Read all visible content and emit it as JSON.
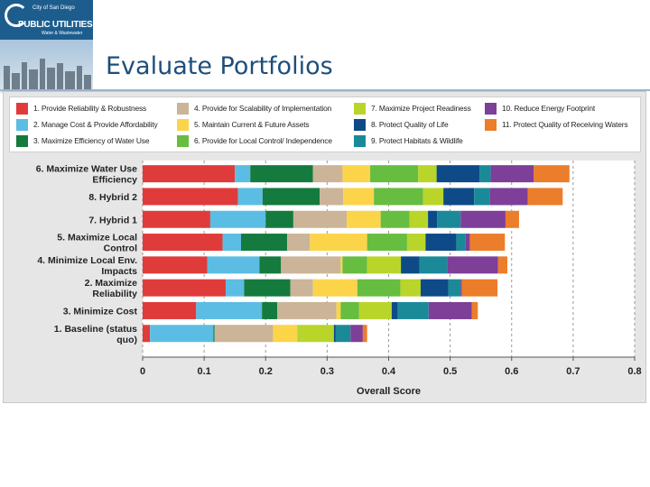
{
  "header": {
    "title": "Evaluate Portfolios",
    "logo": {
      "line1": "City of San Diego",
      "line2": "PUBLIC UTILITIES",
      "line3": "Water & Wastewater"
    }
  },
  "colors": {
    "frame_bg": "#e6e6e6",
    "plot_bg": "#ffffff",
    "title": "#1e4e7b"
  },
  "legend": [
    {
      "label": "1. Provide Reliability & Robustness",
      "color": "#e03b3b"
    },
    {
      "label": "2. Manage Cost & Provide Affordability",
      "color": "#5bbde3"
    },
    {
      "label": "3. Maximize Efficiency of Water Use",
      "color": "#157a3e"
    },
    {
      "label": "4. Provide for Scalability of Implementation",
      "color": "#cbb497"
    },
    {
      "label": "5. Maintain Current & Future Assets",
      "color": "#fcd44a"
    },
    {
      "label": "6. Provide for Local Control/ Independence",
      "color": "#66bd3f"
    },
    {
      "label": "7. Maximize Project Readiness",
      "color": "#b9d52a"
    },
    {
      "label": "8. Protect Quality of Life",
      "color": "#0e4a88"
    },
    {
      "label": "9. Protect Habitats & Wildlife",
      "color": "#1a8a98"
    },
    {
      "label": "10. Reduce Energy Footprint",
      "color": "#7d3f98"
    },
    {
      "label": "11. Protect Quality of Receiving Waters",
      "color": "#ec7d2a"
    }
  ],
  "chart_data": {
    "type": "bar",
    "orientation": "horizontal",
    "stacked": true,
    "xlabel": "Overall Score",
    "ylabel": "",
    "xlim": [
      0,
      0.8
    ],
    "xticks": [
      "0",
      "0.1",
      "0.2",
      "0.3",
      "0.4",
      "0.5",
      "0.6",
      "0.7",
      "0.8"
    ],
    "grid": "vertical dashed",
    "categories": [
      "6. Maximize Water Use Efficiency",
      "8. Hybrid 2",
      "7. Hybrid 1",
      "5. Maximize Local Control",
      "4. Minimize Local Env. Impacts",
      "2. Maximize Reliability",
      "3. Minimize Cost",
      "1. Baseline (status quo)"
    ],
    "series": [
      {
        "name": "1. Provide Reliability & Robustness",
        "values": [
          0.15,
          0.155,
          0.11,
          0.13,
          0.105,
          0.135,
          0.087,
          0.012
        ]
      },
      {
        "name": "2. Manage Cost & Provide Affordability",
        "values": [
          0.025,
          0.04,
          0.09,
          0.03,
          0.085,
          0.03,
          0.107,
          0.103
        ]
      },
      {
        "name": "3. Maximize Efficiency of Water Use",
        "values": [
          0.102,
          0.093,
          0.045,
          0.075,
          0.035,
          0.075,
          0.025,
          0.002
        ]
      },
      {
        "name": "4. Provide for Scalability of Implementation",
        "values": [
          0.048,
          0.038,
          0.087,
          0.037,
          0.097,
          0.037,
          0.096,
          0.095
        ]
      },
      {
        "name": "5. Maintain Current & Future Assets",
        "values": [
          0.045,
          0.05,
          0.055,
          0.093,
          0.003,
          0.072,
          0.007,
          0.04
        ]
      },
      {
        "name": "6. Provide for Local Control/ Independence",
        "values": [
          0.078,
          0.08,
          0.047,
          0.065,
          0.04,
          0.07,
          0.03,
          0.001
        ]
      },
      {
        "name": "7. Maximize Project Readiness",
        "values": [
          0.03,
          0.033,
          0.03,
          0.03,
          0.055,
          0.033,
          0.053,
          0.058
        ]
      },
      {
        "name": "8. Protect Quality of Life",
        "values": [
          0.07,
          0.05,
          0.015,
          0.05,
          0.03,
          0.045,
          0.01,
          0.003
        ]
      },
      {
        "name": "9. Protect Habitats & Wildlife",
        "values": [
          0.018,
          0.025,
          0.038,
          0.015,
          0.045,
          0.02,
          0.05,
          0.024
        ]
      },
      {
        "name": "10. Reduce Energy Footprint",
        "values": [
          0.07,
          0.062,
          0.073,
          0.007,
          0.083,
          0.002,
          0.07,
          0.02
        ]
      },
      {
        "name": "11. Protect Quality of Receiving Waters",
        "values": [
          0.058,
          0.057,
          0.022,
          0.057,
          0.015,
          0.058,
          0.01,
          0.007
        ]
      }
    ]
  }
}
